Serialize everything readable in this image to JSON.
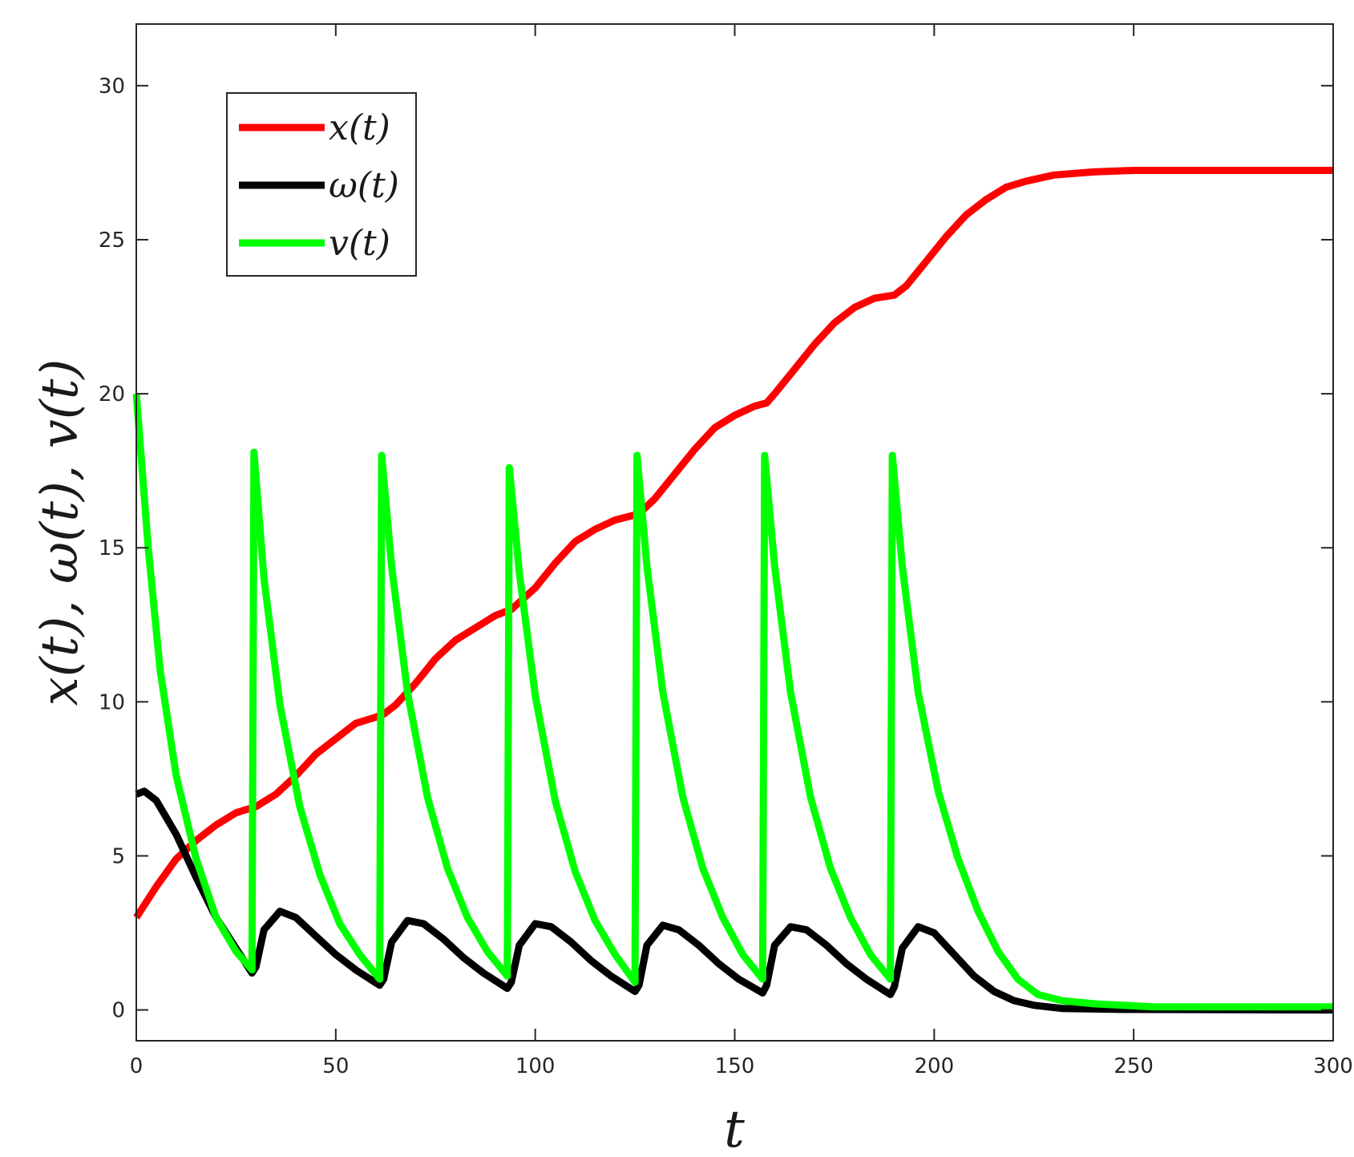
{
  "chart_data": {
    "type": "line",
    "xlabel": "t",
    "ylabel": "x(t), ω(t), v(t)",
    "xlim": [
      0,
      300
    ],
    "ylim": [
      -1,
      32
    ],
    "xticks": [
      "0",
      "50",
      "100",
      "150",
      "200",
      "250",
      "300"
    ],
    "yticks": [
      "0",
      "5",
      "10",
      "15",
      "20",
      "25",
      "30"
    ],
    "grid": false,
    "legend_position": "top-left",
    "series": [
      {
        "name": "x(t)",
        "color": "#ff0000",
        "points": [
          [
            0,
            3.0
          ],
          [
            5,
            4.0
          ],
          [
            10,
            4.9
          ],
          [
            15,
            5.5
          ],
          [
            20,
            6.0
          ],
          [
            25,
            6.4
          ],
          [
            30,
            6.6
          ],
          [
            35,
            7.0
          ],
          [
            40,
            7.6
          ],
          [
            45,
            8.3
          ],
          [
            50,
            8.8
          ],
          [
            55,
            9.3
          ],
          [
            60,
            9.5
          ],
          [
            62,
            9.6
          ],
          [
            65,
            9.9
          ],
          [
            70,
            10.6
          ],
          [
            75,
            11.4
          ],
          [
            80,
            12.0
          ],
          [
            85,
            12.4
          ],
          [
            90,
            12.8
          ],
          [
            94,
            13.0
          ],
          [
            100,
            13.7
          ],
          [
            105,
            14.5
          ],
          [
            110,
            15.2
          ],
          [
            115,
            15.6
          ],
          [
            120,
            15.9
          ],
          [
            126,
            16.1
          ],
          [
            130,
            16.6
          ],
          [
            135,
            17.4
          ],
          [
            140,
            18.2
          ],
          [
            145,
            18.9
          ],
          [
            150,
            19.3
          ],
          [
            155,
            19.6
          ],
          [
            158,
            19.7
          ],
          [
            160,
            20.0
          ],
          [
            165,
            20.8
          ],
          [
            170,
            21.6
          ],
          [
            175,
            22.3
          ],
          [
            180,
            22.8
          ],
          [
            185,
            23.1
          ],
          [
            190,
            23.2
          ],
          [
            193,
            23.5
          ],
          [
            198,
            24.3
          ],
          [
            203,
            25.1
          ],
          [
            208,
            25.8
          ],
          [
            213,
            26.3
          ],
          [
            218,
            26.7
          ],
          [
            223,
            26.9
          ],
          [
            230,
            27.1
          ],
          [
            240,
            27.2
          ],
          [
            250,
            27.25
          ],
          [
            300,
            27.25
          ]
        ]
      },
      {
        "name": "ω(t)",
        "color": "#000000",
        "points": [
          [
            0,
            7.0
          ],
          [
            2,
            7.1
          ],
          [
            5,
            6.8
          ],
          [
            10,
            5.7
          ],
          [
            15,
            4.3
          ],
          [
            20,
            3.0
          ],
          [
            25,
            2.0
          ],
          [
            29,
            1.2
          ],
          [
            30,
            1.4
          ],
          [
            32,
            2.6
          ],
          [
            36,
            3.2
          ],
          [
            40,
            3.0
          ],
          [
            45,
            2.4
          ],
          [
            50,
            1.8
          ],
          [
            55,
            1.3
          ],
          [
            61,
            0.8
          ],
          [
            62,
            1.0
          ],
          [
            64,
            2.2
          ],
          [
            68,
            2.9
          ],
          [
            72,
            2.8
          ],
          [
            77,
            2.3
          ],
          [
            82,
            1.7
          ],
          [
            87,
            1.2
          ],
          [
            93,
            0.7
          ],
          [
            94,
            0.9
          ],
          [
            96,
            2.1
          ],
          [
            100,
            2.8
          ],
          [
            104,
            2.7
          ],
          [
            109,
            2.2
          ],
          [
            114,
            1.6
          ],
          [
            119,
            1.1
          ],
          [
            125,
            0.6
          ],
          [
            126,
            0.8
          ],
          [
            128,
            2.1
          ],
          [
            132,
            2.75
          ],
          [
            136,
            2.6
          ],
          [
            141,
            2.1
          ],
          [
            146,
            1.5
          ],
          [
            151,
            1.0
          ],
          [
            157,
            0.55
          ],
          [
            158,
            0.8
          ],
          [
            160,
            2.1
          ],
          [
            164,
            2.7
          ],
          [
            168,
            2.6
          ],
          [
            173,
            2.1
          ],
          [
            178,
            1.5
          ],
          [
            183,
            1.0
          ],
          [
            189,
            0.5
          ],
          [
            190,
            0.75
          ],
          [
            192,
            2.0
          ],
          [
            196,
            2.7
          ],
          [
            200,
            2.5
          ],
          [
            205,
            1.8
          ],
          [
            210,
            1.1
          ],
          [
            215,
            0.6
          ],
          [
            220,
            0.3
          ],
          [
            225,
            0.15
          ],
          [
            232,
            0.05
          ],
          [
            245,
            0.02
          ],
          [
            300,
            0.0
          ]
        ]
      },
      {
        "name": "v(t)",
        "color": "#00ff00",
        "points": [
          [
            0,
            20.0
          ],
          [
            3,
            15.0
          ],
          [
            6,
            11.0
          ],
          [
            10,
            7.6
          ],
          [
            15,
            4.9
          ],
          [
            20,
            3.0
          ],
          [
            25,
            1.9
          ],
          [
            29,
            1.3
          ],
          [
            29.5,
            18.1
          ],
          [
            32,
            14.0
          ],
          [
            36,
            9.9
          ],
          [
            41,
            6.6
          ],
          [
            46,
            4.4
          ],
          [
            51,
            2.8
          ],
          [
            56,
            1.8
          ],
          [
            61,
            1.0
          ],
          [
            61.5,
            18.0
          ],
          [
            64,
            14.4
          ],
          [
            68,
            10.3
          ],
          [
            73,
            6.9
          ],
          [
            78,
            4.6
          ],
          [
            83,
            3.0
          ],
          [
            88,
            1.9
          ],
          [
            93,
            1.1
          ],
          [
            93.5,
            17.6
          ],
          [
            96,
            14.2
          ],
          [
            100,
            10.2
          ],
          [
            105,
            6.8
          ],
          [
            110,
            4.5
          ],
          [
            115,
            2.9
          ],
          [
            120,
            1.8
          ],
          [
            125,
            0.9
          ],
          [
            125.5,
            18.0
          ],
          [
            128,
            14.4
          ],
          [
            132,
            10.3
          ],
          [
            137,
            6.9
          ],
          [
            142,
            4.6
          ],
          [
            147,
            3.0
          ],
          [
            152,
            1.8
          ],
          [
            157,
            1.0
          ],
          [
            157.5,
            18.0
          ],
          [
            160,
            14.4
          ],
          [
            164,
            10.3
          ],
          [
            169,
            6.9
          ],
          [
            174,
            4.6
          ],
          [
            179,
            3.0
          ],
          [
            184,
            1.8
          ],
          [
            189,
            1.0
          ],
          [
            189.5,
            18.0
          ],
          [
            192,
            14.4
          ],
          [
            196,
            10.3
          ],
          [
            201,
            7.1
          ],
          [
            206,
            4.9
          ],
          [
            211,
            3.2
          ],
          [
            216,
            1.9
          ],
          [
            221,
            1.0
          ],
          [
            226,
            0.5
          ],
          [
            232,
            0.3
          ],
          [
            240,
            0.2
          ],
          [
            255,
            0.1
          ],
          [
            300,
            0.1
          ]
        ]
      }
    ]
  }
}
